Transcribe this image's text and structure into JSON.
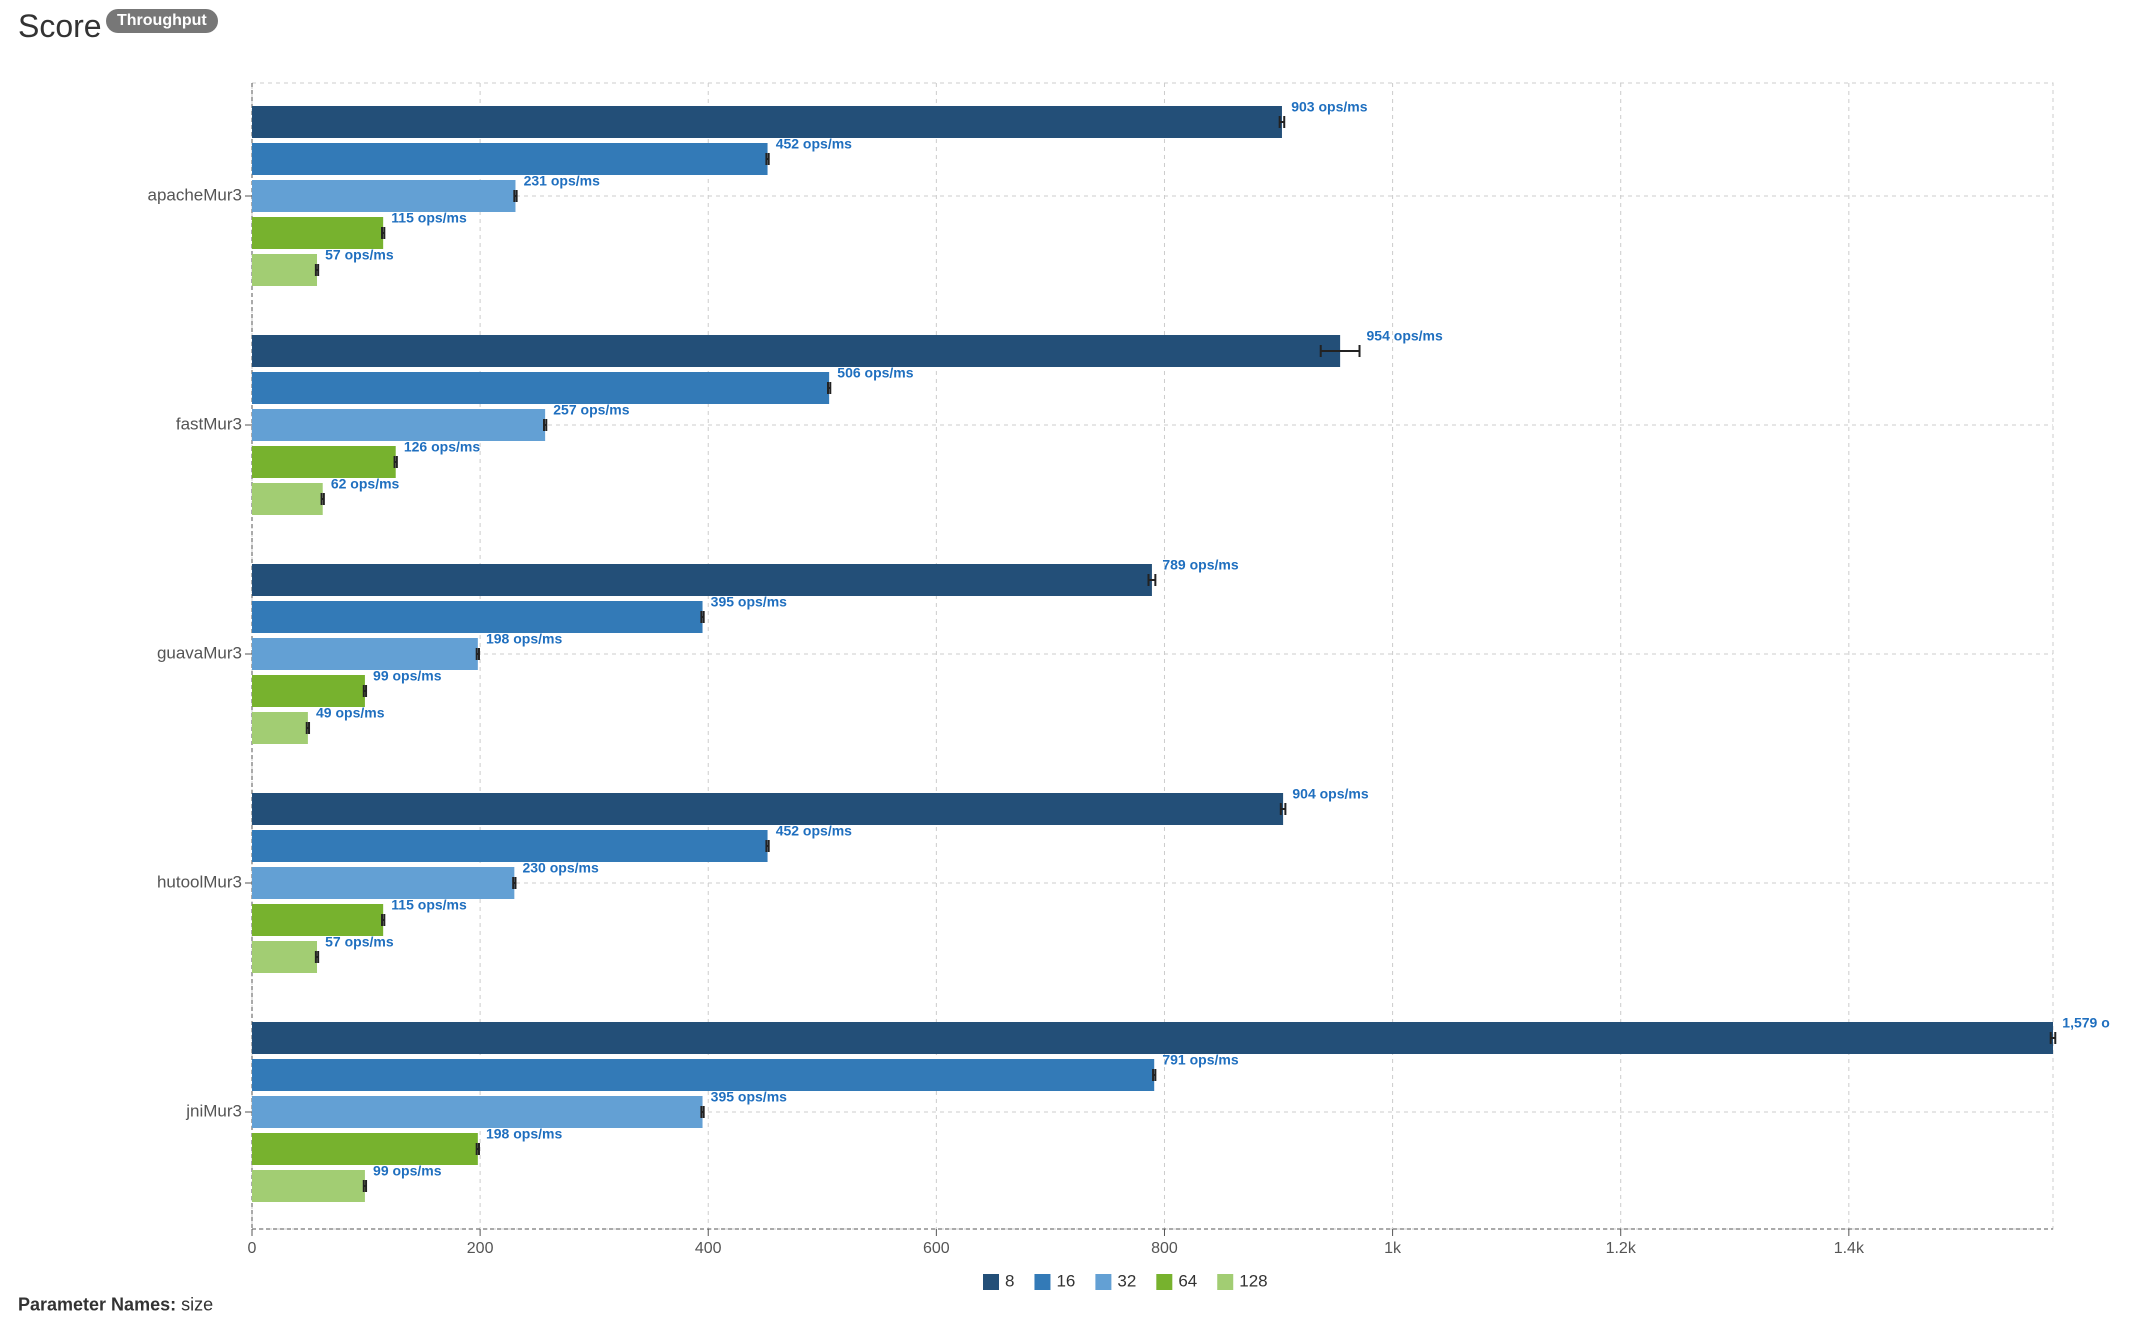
{
  "header": {
    "title": "Score",
    "badge": "Throughput"
  },
  "footer": {
    "param_label": "Parameter Names:",
    "param_value": "size"
  },
  "colors": {
    "8": "#234f78",
    "16": "#337ab7",
    "32": "#63a0d4",
    "64": "#77b22e",
    "128": "#a2cd73"
  },
  "chart_data": {
    "type": "bar",
    "orientation": "horizontal",
    "title": "Score",
    "categories": [
      "apacheMur3",
      "fastMur3",
      "guavaMur3",
      "hutoolMur3",
      "jniMur3"
    ],
    "xlim": [
      0,
      1579
    ],
    "xticks": [
      0,
      200,
      400,
      600,
      800,
      1000,
      1200,
      1400
    ],
    "xtick_labels": [
      "0",
      "200",
      "400",
      "600",
      "800",
      "1k",
      "1.2k",
      "1.4k"
    ],
    "unit": "ops/ms",
    "legend_position": "bottom-center",
    "grid": true,
    "series": [
      {
        "name": "8",
        "color": "#234f78",
        "values": [
          903,
          954,
          789,
          904,
          1579
        ],
        "errors": [
          2,
          17,
          3,
          2,
          2
        ],
        "labels": [
          "903 ops/ms",
          "954 ops/ms",
          "789 ops/ms",
          "904 ops/ms",
          "1,579 o"
        ]
      },
      {
        "name": "16",
        "color": "#337ab7",
        "values": [
          452,
          506,
          395,
          452,
          791
        ],
        "errors": [
          1,
          1,
          1,
          1,
          1
        ],
        "labels": [
          "452 ops/ms",
          "506 ops/ms",
          "395 ops/ms",
          "452 ops/ms",
          "791 ops/ms"
        ]
      },
      {
        "name": "32",
        "color": "#63a0d4",
        "values": [
          231,
          257,
          198,
          230,
          395
        ],
        "errors": [
          1,
          1,
          1,
          1,
          1
        ],
        "labels": [
          "231 ops/ms",
          "257 ops/ms",
          "198 ops/ms",
          "230 ops/ms",
          "395 ops/ms"
        ]
      },
      {
        "name": "64",
        "color": "#77b22e",
        "values": [
          115,
          126,
          99,
          115,
          198
        ],
        "errors": [
          1,
          1,
          1,
          1,
          1
        ],
        "labels": [
          "115 ops/ms",
          "126 ops/ms",
          "99 ops/ms",
          "115 ops/ms",
          "198 ops/ms"
        ]
      },
      {
        "name": "128",
        "color": "#a2cd73",
        "values": [
          57,
          62,
          49,
          57,
          99
        ],
        "errors": [
          1,
          1,
          1,
          1,
          1
        ],
        "labels": [
          "57 ops/ms",
          "62 ops/ms",
          "49 ops/ms",
          "57 ops/ms",
          "99 ops/ms"
        ]
      }
    ]
  }
}
